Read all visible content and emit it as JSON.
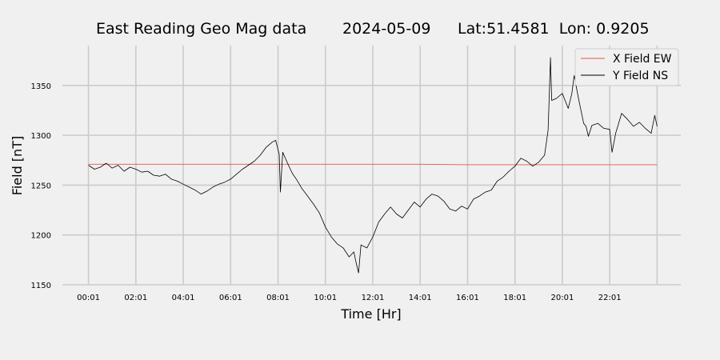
{
  "chart_data": {
    "type": "line",
    "title": {
      "left": "East Reading Geo Mag data",
      "date": "2024-05-09",
      "location": "Lat:51.4581  Lon: 0.9205"
    },
    "xlabel": "Time  [Hr]",
    "ylabel": "Field  [nT]",
    "x_unit": "hours since 00:01",
    "xlim": [
      -1.1,
      25.0
    ],
    "ylim": [
      1150,
      1390
    ],
    "x_ticks": [
      {
        "label": "00:01",
        "value": 0
      },
      {
        "label": "02:01",
        "value": 2
      },
      {
        "label": "04:01",
        "value": 4
      },
      {
        "label": "06:01",
        "value": 6
      },
      {
        "label": "08:01",
        "value": 8
      },
      {
        "label": "10:01",
        "value": 10
      },
      {
        "label": "12:01",
        "value": 12
      },
      {
        "label": "14:01",
        "value": 14
      },
      {
        "label": "16:01",
        "value": 16
      },
      {
        "label": "18:01",
        "value": 18
      },
      {
        "label": "20:01",
        "value": 20
      },
      {
        "label": "22:01",
        "value": 22
      }
    ],
    "x_grid_extra": [
      24
    ],
    "y_ticks": [
      1150,
      1200,
      1250,
      1300,
      1350
    ],
    "grid": true,
    "legend_position": "top-right",
    "series": [
      {
        "name": "X Field EW",
        "color": "#e8534a",
        "points": [
          [
            0,
            1271
          ],
          [
            2,
            1271
          ],
          [
            4,
            1271
          ],
          [
            6,
            1271
          ],
          [
            8,
            1271
          ],
          [
            10,
            1271
          ],
          [
            12,
            1271
          ],
          [
            14,
            1271
          ],
          [
            16,
            1270.5
          ],
          [
            18,
            1270.5
          ],
          [
            20,
            1270.5
          ],
          [
            22,
            1270.5
          ],
          [
            24,
            1270.5
          ]
        ]
      },
      {
        "name": "Y Field NS",
        "color": "#000000",
        "points": [
          [
            0,
            1270
          ],
          [
            0.25,
            1266
          ],
          [
            0.5,
            1268
          ],
          [
            0.75,
            1272
          ],
          [
            1,
            1267
          ],
          [
            1.25,
            1270
          ],
          [
            1.5,
            1264
          ],
          [
            1.75,
            1268
          ],
          [
            2,
            1266
          ],
          [
            2.25,
            1263
          ],
          [
            2.5,
            1264
          ],
          [
            2.75,
            1260
          ],
          [
            3,
            1259
          ],
          [
            3.25,
            1261
          ],
          [
            3.5,
            1256
          ],
          [
            3.75,
            1254
          ],
          [
            4,
            1251
          ],
          [
            4.25,
            1248
          ],
          [
            4.5,
            1245
          ],
          [
            4.75,
            1241
          ],
          [
            5,
            1244
          ],
          [
            5.25,
            1248
          ],
          [
            5.5,
            1251
          ],
          [
            5.75,
            1253
          ],
          [
            6,
            1256
          ],
          [
            6.25,
            1261
          ],
          [
            6.5,
            1266
          ],
          [
            6.75,
            1270
          ],
          [
            7,
            1274
          ],
          [
            7.25,
            1280
          ],
          [
            7.5,
            1288
          ],
          [
            7.75,
            1293
          ],
          [
            7.9,
            1295
          ],
          [
            8.05,
            1281
          ],
          [
            8.1,
            1243
          ],
          [
            8.2,
            1283
          ],
          [
            8.4,
            1272
          ],
          [
            8.6,
            1262
          ],
          [
            8.8,
            1255
          ],
          [
            9,
            1247
          ],
          [
            9.25,
            1239
          ],
          [
            9.5,
            1231
          ],
          [
            9.75,
            1222
          ],
          [
            10,
            1208
          ],
          [
            10.25,
            1198
          ],
          [
            10.5,
            1191
          ],
          [
            10.75,
            1187
          ],
          [
            11,
            1178
          ],
          [
            11.2,
            1183
          ],
          [
            11.3,
            1172
          ],
          [
            11.4,
            1162
          ],
          [
            11.5,
            1190
          ],
          [
            11.75,
            1187
          ],
          [
            12,
            1198
          ],
          [
            12.25,
            1213
          ],
          [
            12.5,
            1221
          ],
          [
            12.75,
            1228
          ],
          [
            13,
            1221
          ],
          [
            13.25,
            1217
          ],
          [
            13.5,
            1225
          ],
          [
            13.75,
            1233
          ],
          [
            14,
            1228
          ],
          [
            14.25,
            1236
          ],
          [
            14.5,
            1241
          ],
          [
            14.75,
            1239
          ],
          [
            15,
            1234
          ],
          [
            15.25,
            1226
          ],
          [
            15.5,
            1224
          ],
          [
            15.75,
            1229
          ],
          [
            16,
            1226
          ],
          [
            16.25,
            1236
          ],
          [
            16.5,
            1239
          ],
          [
            16.75,
            1243
          ],
          [
            17,
            1245
          ],
          [
            17.25,
            1254
          ],
          [
            17.5,
            1258
          ],
          [
            17.75,
            1264
          ],
          [
            18,
            1269
          ],
          [
            18.25,
            1277
          ],
          [
            18.5,
            1274
          ],
          [
            18.75,
            1269
          ],
          [
            19,
            1273
          ],
          [
            19.25,
            1280
          ],
          [
            19.4,
            1305
          ],
          [
            19.45,
            1340
          ],
          [
            19.5,
            1378
          ],
          [
            19.55,
            1335
          ],
          [
            19.75,
            1337
          ],
          [
            20,
            1342
          ],
          [
            20.25,
            1327
          ],
          [
            20.4,
            1342
          ],
          [
            20.5,
            1360
          ],
          [
            20.7,
            1335
          ],
          [
            20.9,
            1312
          ],
          [
            21,
            1309
          ],
          [
            21.1,
            1299
          ],
          [
            21.25,
            1310
          ],
          [
            21.5,
            1312
          ],
          [
            21.75,
            1307
          ],
          [
            22,
            1306
          ],
          [
            22.1,
            1283
          ],
          [
            22.25,
            1302
          ],
          [
            22.5,
            1322
          ],
          [
            22.75,
            1316
          ],
          [
            23,
            1309
          ],
          [
            23.25,
            1313
          ],
          [
            23.5,
            1307
          ],
          [
            23.75,
            1302
          ],
          [
            23.9,
            1320
          ],
          [
            24,
            1309
          ]
        ]
      }
    ]
  }
}
